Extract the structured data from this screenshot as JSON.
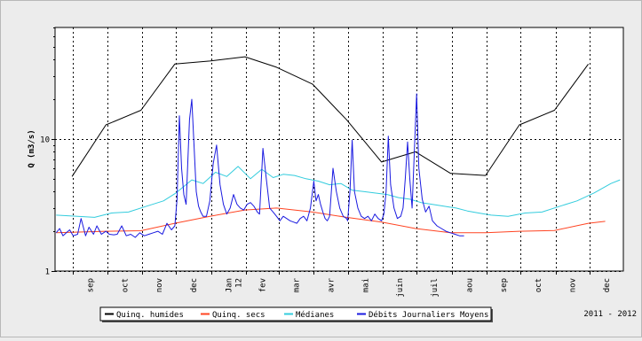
{
  "chart_data": {
    "type": "line",
    "title": "",
    "xlabel": "",
    "ylabel": "Q (m3/s)",
    "yscale": "log",
    "ylim": [
      1,
      70
    ],
    "yticks": [
      1,
      10
    ],
    "ytick_labels": [
      "1",
      "10"
    ],
    "xlim": [
      "2011-08-16",
      "2012-12-31"
    ],
    "months": [
      {
        "date": "2011-09-01",
        "label": "sep"
      },
      {
        "date": "2011-10-01",
        "label": "oct"
      },
      {
        "date": "2011-11-01",
        "label": "nov"
      },
      {
        "date": "2011-12-01",
        "label": "dec"
      },
      {
        "date": "2012-01-01",
        "label": "Jan 12"
      },
      {
        "date": "2012-02-01",
        "label": "fev"
      },
      {
        "date": "2012-03-01",
        "label": "mar"
      },
      {
        "date": "2012-04-01",
        "label": "avr"
      },
      {
        "date": "2012-05-01",
        "label": "mai"
      },
      {
        "date": "2012-06-01",
        "label": "juin"
      },
      {
        "date": "2012-07-01",
        "label": "juil"
      },
      {
        "date": "2012-08-01",
        "label": "aou"
      },
      {
        "date": "2012-09-01",
        "label": "sep"
      },
      {
        "date": "2012-10-01",
        "label": "oct"
      },
      {
        "date": "2012-11-01",
        "label": "nov"
      },
      {
        "date": "2012-12-01",
        "label": "dec"
      }
    ],
    "grid": true,
    "legend_position": "bottom",
    "period_label": "2011 - 2012",
    "series": [
      {
        "name": "Quinq. humides",
        "color": "#000000",
        "x": [
          "2011-08-31",
          "2011-09-30",
          "2011-10-31",
          "2011-11-30",
          "2011-12-31",
          "2012-01-31",
          "2012-02-28",
          "2012-03-31",
          "2012-04-30",
          "2012-05-31",
          "2012-06-30",
          "2012-07-31",
          "2012-08-31",
          "2012-09-30",
          "2012-10-31",
          "2012-11-30"
        ],
        "values": [
          5.2,
          12.8,
          16.5,
          37,
          39,
          42,
          35,
          26,
          14,
          6.7,
          8,
          5.5,
          5.3,
          12.8,
          16.5,
          37
        ]
      },
      {
        "name": "Quinq. secs",
        "color": "#ff4422",
        "x": [
          "2011-08-17",
          "2011-09-30",
          "2011-10-31",
          "2011-11-30",
          "2011-12-31",
          "2012-01-31",
          "2012-02-28",
          "2012-03-31",
          "2012-04-30",
          "2012-05-31",
          "2012-06-30",
          "2012-07-31",
          "2012-08-31",
          "2012-09-30",
          "2012-10-31",
          "2012-11-30",
          "2012-12-15"
        ],
        "values": [
          1.95,
          2.0,
          2.02,
          2.3,
          2.6,
          2.9,
          3.0,
          2.8,
          2.55,
          2.35,
          2.1,
          1.95,
          1.95,
          2.0,
          2.03,
          2.3,
          2.38
        ]
      },
      {
        "name": "Médianes",
        "color": "#33ccdd",
        "x": [
          "2011-08-17",
          "2011-09-05",
          "2011-09-20",
          "2011-10-05",
          "2011-10-20",
          "2011-11-05",
          "2011-11-20",
          "2011-12-01",
          "2011-12-15",
          "2011-12-25",
          "2012-01-05",
          "2012-01-15",
          "2012-01-25",
          "2012-02-05",
          "2012-02-15",
          "2012-02-25",
          "2012-03-05",
          "2012-03-15",
          "2012-03-25",
          "2012-04-05",
          "2012-04-15",
          "2012-04-25",
          "2012-05-05",
          "2012-05-15",
          "2012-05-25",
          "2012-06-05",
          "2012-06-15",
          "2012-06-25",
          "2012-07-05",
          "2012-07-15",
          "2012-07-25",
          "2012-08-05",
          "2012-08-15",
          "2012-08-25",
          "2012-09-05",
          "2012-09-20",
          "2012-10-05",
          "2012-10-20",
          "2012-11-05",
          "2012-11-20",
          "2012-12-05",
          "2012-12-20",
          "2012-12-28"
        ],
        "values": [
          2.65,
          2.6,
          2.55,
          2.75,
          2.8,
          3.1,
          3.4,
          3.9,
          4.9,
          4.6,
          5.6,
          5.2,
          6.2,
          5.0,
          5.9,
          5.1,
          5.4,
          5.3,
          5.0,
          4.8,
          4.5,
          4.6,
          4.1,
          4.0,
          3.9,
          3.8,
          3.6,
          3.5,
          3.3,
          3.2,
          3.1,
          3.0,
          2.85,
          2.75,
          2.65,
          2.6,
          2.75,
          2.8,
          3.1,
          3.4,
          3.9,
          4.6,
          4.9
        ]
      },
      {
        "name": "Débits Journaliers Moyens",
        "color": "#1a1ae0",
        "x": [
          "2011-08-17",
          "2011-08-20",
          "2011-08-23",
          "2011-08-26",
          "2011-08-29",
          "2011-09-01",
          "2011-09-05",
          "2011-09-08",
          "2011-09-12",
          "2011-09-15",
          "2011-09-19",
          "2011-09-22",
          "2011-09-26",
          "2011-09-30",
          "2011-10-03",
          "2011-10-07",
          "2011-10-10",
          "2011-10-14",
          "2011-10-18",
          "2011-10-22",
          "2011-10-26",
          "2011-10-30",
          "2011-11-03",
          "2011-11-07",
          "2011-11-11",
          "2011-11-15",
          "2011-11-19",
          "2011-11-23",
          "2011-11-27",
          "2011-11-30",
          "2011-12-02",
          "2011-12-04",
          "2011-12-06",
          "2011-12-08",
          "2011-12-10",
          "2011-12-13",
          "2011-12-15",
          "2011-12-17",
          "2011-12-19",
          "2011-12-21",
          "2011-12-23",
          "2011-12-25",
          "2011-12-28",
          "2011-12-31",
          "2012-01-03",
          "2012-01-06",
          "2012-01-09",
          "2012-01-12",
          "2012-01-15",
          "2012-01-18",
          "2012-01-21",
          "2012-01-24",
          "2012-01-27",
          "2012-01-30",
          "2012-02-02",
          "2012-02-05",
          "2012-02-08",
          "2012-02-11",
          "2012-02-13",
          "2012-02-16",
          "2012-02-19",
          "2012-02-22",
          "2012-02-25",
          "2012-02-28",
          "2012-03-02",
          "2012-03-05",
          "2012-03-08",
          "2012-03-11",
          "2012-03-14",
          "2012-03-17",
          "2012-03-20",
          "2012-03-23",
          "2012-03-26",
          "2012-03-29",
          "2012-04-01",
          "2012-04-03",
          "2012-04-05",
          "2012-04-07",
          "2012-04-09",
          "2012-04-11",
          "2012-04-13",
          "2012-04-15",
          "2012-04-18",
          "2012-04-21",
          "2012-04-24",
          "2012-04-27",
          "2012-04-30",
          "2012-05-01",
          "2012-05-03",
          "2012-05-05",
          "2012-05-07",
          "2012-05-10",
          "2012-05-13",
          "2012-05-16",
          "2012-05-19",
          "2012-05-22",
          "2012-05-25",
          "2012-05-28",
          "2012-05-31",
          "2012-06-02",
          "2012-06-04",
          "2012-06-06",
          "2012-06-08",
          "2012-06-11",
          "2012-06-14",
          "2012-06-17",
          "2012-06-19",
          "2012-06-21",
          "2012-06-23",
          "2012-06-25",
          "2012-06-27",
          "2012-06-29",
          "2012-07-01",
          "2012-07-03",
          "2012-07-06",
          "2012-07-09",
          "2012-07-12",
          "2012-07-15",
          "2012-07-19",
          "2012-07-23",
          "2012-07-27",
          "2012-07-31",
          "2012-08-04",
          "2012-08-08",
          "2012-08-12"
        ],
        "values": [
          1.95,
          2.1,
          1.85,
          1.95,
          2.05,
          1.85,
          1.9,
          2.5,
          1.85,
          2.15,
          1.9,
          2.2,
          1.9,
          2.0,
          1.9,
          1.88,
          1.9,
          2.2,
          1.85,
          1.9,
          1.8,
          1.95,
          1.85,
          1.9,
          1.95,
          2.0,
          1.9,
          2.3,
          2.05,
          2.2,
          3.5,
          15.0,
          6.0,
          3.8,
          3.2,
          14.0,
          20.0,
          9.0,
          4.0,
          3.1,
          2.8,
          2.6,
          2.6,
          3.4,
          6.5,
          9.0,
          4.5,
          3.2,
          2.7,
          3.0,
          3.8,
          3.2,
          3.0,
          2.9,
          3.2,
          3.3,
          3.1,
          2.8,
          2.7,
          8.5,
          5.0,
          3.0,
          2.8,
          2.6,
          2.4,
          2.6,
          2.5,
          2.4,
          2.35,
          2.3,
          2.5,
          2.6,
          2.4,
          3.0,
          4.8,
          3.4,
          3.8,
          3.2,
          2.8,
          2.5,
          2.4,
          2.6,
          6.0,
          4.0,
          3.0,
          2.6,
          2.5,
          2.4,
          4.0,
          9.8,
          4.0,
          3.0,
          2.6,
          2.5,
          2.6,
          2.4,
          2.7,
          2.5,
          2.4,
          2.7,
          4.0,
          10.5,
          4.5,
          3.0,
          2.5,
          2.6,
          3.0,
          5.0,
          9.5,
          5.0,
          3.0,
          8.0,
          22.0,
          6.0,
          3.5,
          2.8,
          3.1,
          2.4,
          2.2,
          2.1,
          2.0,
          1.95,
          1.9,
          1.85,
          1.85
        ]
      }
    ]
  }
}
